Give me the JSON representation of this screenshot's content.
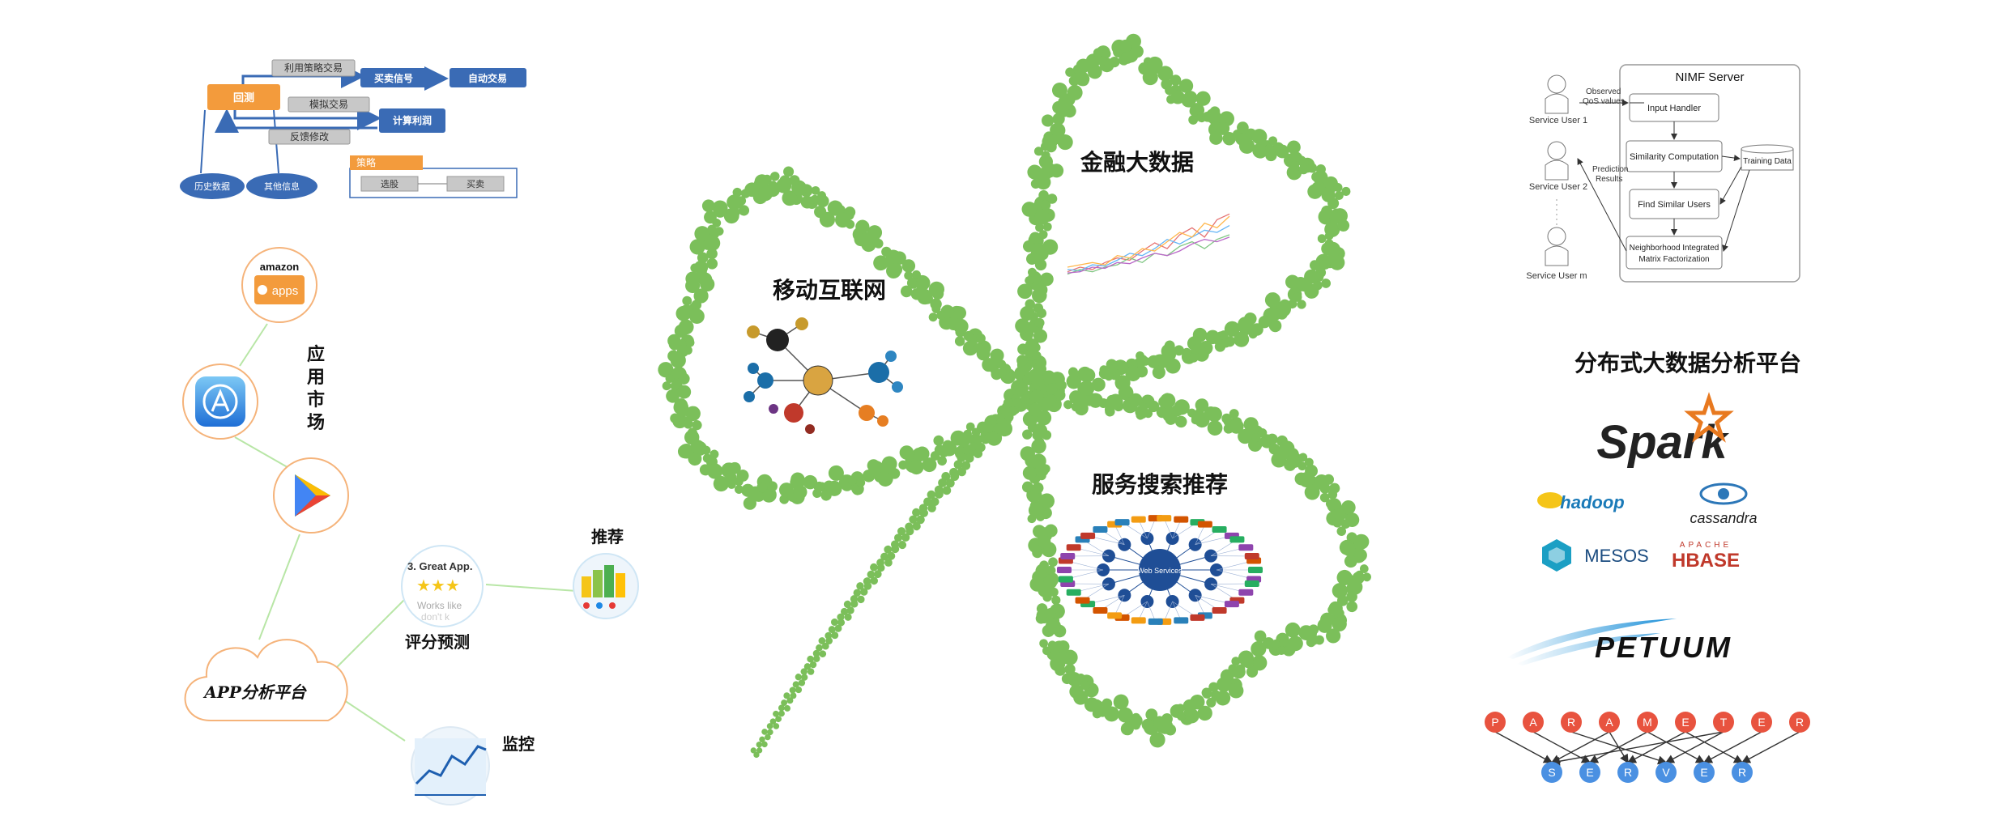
{
  "flow": {
    "nodes": {
      "strategy_trade": "利用策略交易",
      "backtest": "回测",
      "buy_sell_signal": "买卖信号",
      "auto_trade": "自动交易",
      "simulated_trade": "模拟交易",
      "calc_profit": "计算利润",
      "feedback_modify": "反馈修改",
      "strategy": "策略",
      "stock_pick": "选股",
      "buy_sell": "买卖",
      "history_data": "历史数据",
      "other_info": "其他信息"
    }
  },
  "app_platform": {
    "amazon_word": "amazon",
    "amazon_apps": "apps",
    "app_market_label": "应用市场",
    "cloud_label": "APP分析平台",
    "recommend_label": "推荐",
    "rating_label": "评分预测",
    "monitor_label": "监控",
    "rating_card": {
      "title": "3. Great App.",
      "line1": "Works like",
      "line2": "don't k"
    }
  },
  "clover": {
    "mobile_internet": "移动互联网",
    "finance_bigdata": "金融大数据",
    "service_search": "服务搜索推荐",
    "service_hub": "Web Services"
  },
  "nimf": {
    "title": "NIMF Server",
    "boxes": [
      "Input Handler",
      "Similarity Computation",
      "Find Similar Users",
      "Neighborhood Integrated Matrix Factorization"
    ],
    "training_data": "Training Data",
    "users": [
      "Service User 1",
      "Service User 2",
      "Service User m"
    ],
    "observed": "Observed QoS values",
    "prediction": "Prediction Results"
  },
  "platform": {
    "title": "分布式大数据分析平台",
    "logos": {
      "spark": "Spark",
      "hadoop": "hadoop",
      "cassandra": "cassandra",
      "mesos": "MESOS",
      "hbase_top": "APACHE",
      "hbase": "HBASE",
      "petuum": "PETUUM"
    },
    "parameter": [
      "P",
      "A",
      "R",
      "A",
      "M",
      "E",
      "T",
      "E",
      "R"
    ],
    "server": [
      "S",
      "E",
      "R",
      "V",
      "E",
      "R"
    ]
  },
  "colors": {
    "orange": "#f39b3c",
    "blue": "#3a6bb5",
    "gray": "#bfbfbf",
    "clover_green": "#7bbf5a",
    "red_node": "#e8533f",
    "blue_node": "#4a90e2",
    "line_green": "#b8e6a6",
    "circle_orange": "#f5b37a"
  },
  "chart_data": {
    "type": "line",
    "series": [
      {
        "values": [
          10,
          14,
          12,
          18,
          22,
          20,
          28,
          35,
          30,
          42,
          48,
          40,
          55,
          60
        ]
      },
      {
        "values": [
          12,
          11,
          16,
          15,
          20,
          26,
          24,
          30,
          38,
          34,
          40,
          46,
          44,
          50
        ]
      },
      {
        "values": [
          8,
          12,
          10,
          14,
          16,
          22,
          18,
          26,
          24,
          32,
          36,
          30,
          38,
          42
        ]
      },
      {
        "values": [
          14,
          16,
          18,
          16,
          24,
          22,
          30,
          28,
          36,
          44,
          40,
          52,
          48,
          58
        ]
      },
      {
        "values": [
          9,
          10,
          14,
          13,
          18,
          17,
          22,
          26,
          24,
          28,
          34,
          38,
          36,
          40
        ]
      }
    ],
    "series_colors": [
      "#e57373",
      "#64b5f6",
      "#81c784",
      "#ffb74d",
      "#ba68c8"
    ],
    "ylim": [
      0,
      70
    ]
  }
}
